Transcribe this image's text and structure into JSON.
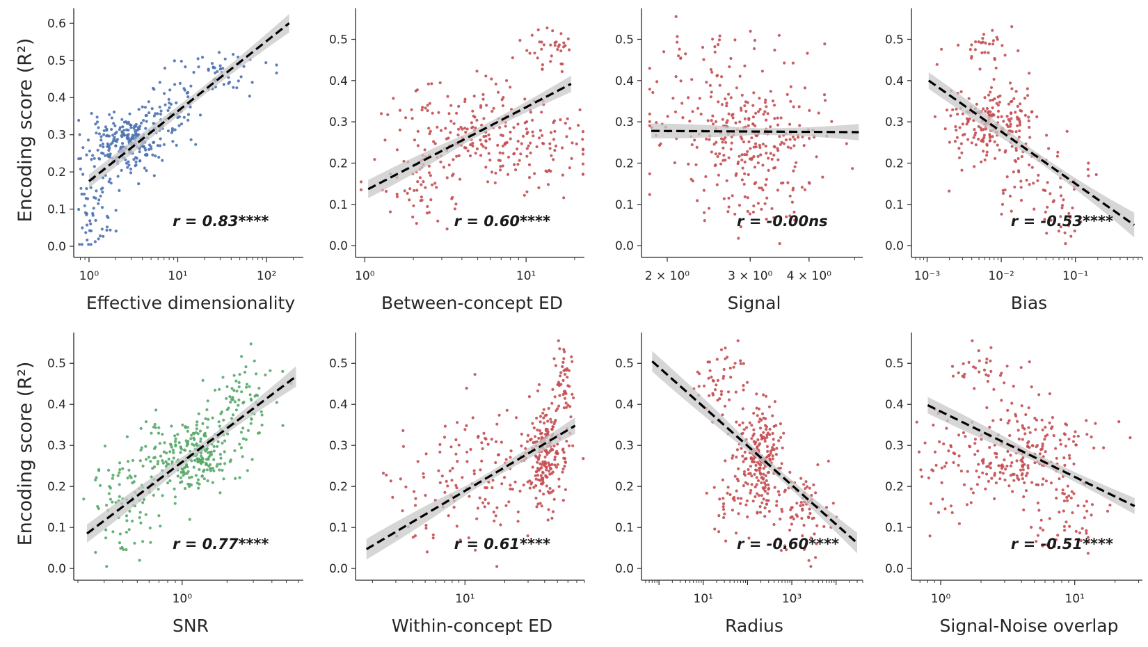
{
  "figure": {
    "background": "#ffffff",
    "fit_line_color": "#000000",
    "ci_color": "#c8c8c8"
  },
  "chart_data": [
    {
      "type": "scatter",
      "xlabel": "Effective dimensionality",
      "ylabel": "Encoding score (R²)",
      "xscale": "log",
      "xlim": [
        0.75,
        260
      ],
      "ylim": [
        -0.015,
        0.64
      ],
      "xticks": [
        {
          "value": 1,
          "label": "10⁰"
        },
        {
          "value": 10,
          "label": "10¹"
        },
        {
          "value": 100,
          "label": "10²"
        }
      ],
      "yticks": [
        0,
        0.1,
        0.2,
        0.3,
        0.4,
        0.5,
        0.6
      ],
      "color": "#4c72b0",
      "annotation": "r = 0.83****",
      "fit": {
        "x": [
          1,
          180
        ],
        "y": [
          0.175,
          0.6
        ],
        "ci": [
          0.018,
          0.012,
          0.025
        ]
      },
      "clusters": [
        {
          "cx": 1.15,
          "cy": 0.1,
          "sx": 0.12,
          "sy": 0.06,
          "n": 60
        },
        {
          "cx": 2.2,
          "cy": 0.27,
          "sx": 0.18,
          "sy": 0.04,
          "n": 170
        },
        {
          "cx": 4.5,
          "cy": 0.3,
          "sx": 0.18,
          "sy": 0.04,
          "n": 80
        },
        {
          "cx": 8,
          "cy": 0.36,
          "sx": 0.15,
          "sy": 0.04,
          "n": 40
        },
        {
          "cx": 30,
          "cy": 0.48,
          "sx": 0.25,
          "sy": 0.03,
          "n": 50
        }
      ],
      "seed": 11
    },
    {
      "type": "scatter",
      "xlabel": "Between-concept ED",
      "ylabel": "",
      "xscale": "log",
      "xlim": [
        0.93,
        23
      ],
      "ylim": [
        -0.015,
        0.575
      ],
      "xticks": [
        {
          "value": 1,
          "label": "10⁰"
        },
        {
          "value": 10,
          "label": "10¹"
        }
      ],
      "yticks": [
        0,
        0.1,
        0.2,
        0.3,
        0.4,
        0.5
      ],
      "color": "#c44e52",
      "annotation": "r = 0.60****",
      "fit": {
        "x": [
          1.05,
          19
        ],
        "y": [
          0.137,
          0.392
        ],
        "ci": [
          0.022,
          0.01,
          0.02
        ]
      },
      "clusters": [
        {
          "cx": 2,
          "cy": 0.13,
          "sx": 0.12,
          "sy": 0.05,
          "n": 45
        },
        {
          "cx": 5,
          "cy": 0.27,
          "sx": 0.28,
          "sy": 0.06,
          "n": 220
        },
        {
          "cx": 14,
          "cy": 0.47,
          "sx": 0.08,
          "sy": 0.035,
          "n": 35
        },
        {
          "cx": 12,
          "cy": 0.2,
          "sx": 0.15,
          "sy": 0.05,
          "n": 40
        }
      ],
      "seed": 23
    },
    {
      "type": "scatter",
      "xlabel": "Signal",
      "ylabel": "",
      "xscale": "log",
      "xlim": [
        1.8,
        5.2
      ],
      "ylim": [
        -0.015,
        0.575
      ],
      "xticks": [
        {
          "value": 2,
          "label": "2 × 10⁰"
        },
        {
          "value": 3,
          "label": "3 × 10⁰"
        },
        {
          "value": 4,
          "label": "4 × 10⁰"
        }
      ],
      "yticks": [
        0,
        0.1,
        0.2,
        0.3,
        0.4,
        0.5
      ],
      "color": "#c44e52",
      "annotation": "r = -0.00ns",
      "fit": {
        "x": [
          1.85,
          5.1
        ],
        "y": [
          0.278,
          0.275
        ],
        "ci": [
          0.018,
          0.008,
          0.02
        ]
      },
      "clusters": [
        {
          "cx": 3.1,
          "cy": 0.27,
          "sx": 0.07,
          "sy": 0.07,
          "n": 200
        },
        {
          "cx": 2.5,
          "cy": 0.3,
          "sx": 0.1,
          "sy": 0.09,
          "n": 80
        },
        {
          "cx": 2.5,
          "cy": 0.48,
          "sx": 0.1,
          "sy": 0.02,
          "n": 20
        },
        {
          "cx": 3.3,
          "cy": 0.1,
          "sx": 0.06,
          "sy": 0.05,
          "n": 40
        }
      ],
      "seed": 37
    },
    {
      "type": "scatter",
      "xlabel": "Bias",
      "ylabel": "",
      "xscale": "log",
      "xlim": [
        0.0007,
        0.8
      ],
      "ylim": [
        -0.015,
        0.575
      ],
      "xticks": [
        {
          "value": 0.001,
          "label": "10⁻³"
        },
        {
          "value": 0.01,
          "label": "10⁻²"
        },
        {
          "value": 0.1,
          "label": "10⁻¹"
        }
      ],
      "yticks": [
        0,
        0.1,
        0.2,
        0.3,
        0.4,
        0.5
      ],
      "color": "#c44e52",
      "annotation": "r = -0.53****",
      "fit": {
        "x": [
          0.00105,
          0.62
        ],
        "y": [
          0.4,
          0.05
        ],
        "ci": [
          0.02,
          0.01,
          0.03
        ]
      },
      "clusters": [
        {
          "cx": 0.008,
          "cy": 0.3,
          "sx": 0.3,
          "sy": 0.05,
          "n": 200
        },
        {
          "cx": 0.005,
          "cy": 0.49,
          "sx": 0.18,
          "sy": 0.025,
          "n": 30
        },
        {
          "cx": 0.03,
          "cy": 0.16,
          "sx": 0.35,
          "sy": 0.05,
          "n": 60
        },
        {
          "cx": 0.07,
          "cy": 0.05,
          "sx": 0.15,
          "sy": 0.03,
          "n": 15
        }
      ],
      "seed": 41
    },
    {
      "type": "scatter",
      "xlabel": "SNR",
      "ylabel": "Encoding score (R²)",
      "xscale": "log",
      "xlim": [
        0.2,
        6.5
      ],
      "ylim": [
        -0.015,
        0.575
      ],
      "xticks": [
        {
          "value": 1,
          "label": "10⁰"
        }
      ],
      "yticks": [
        0,
        0.1,
        0.2,
        0.3,
        0.4,
        0.5
      ],
      "color": "#55a868",
      "annotation": "r = 0.77****",
      "fit": {
        "x": [
          0.23,
          5.8
        ],
        "y": [
          0.085,
          0.468
        ],
        "ci": [
          0.022,
          0.01,
          0.025
        ]
      },
      "clusters": [
        {
          "cx": 0.4,
          "cy": 0.15,
          "sx": 0.12,
          "sy": 0.06,
          "n": 80
        },
        {
          "cx": 1.2,
          "cy": 0.28,
          "sx": 0.12,
          "sy": 0.04,
          "n": 200
        },
        {
          "cx": 2.5,
          "cy": 0.4,
          "sx": 0.12,
          "sy": 0.06,
          "n": 80
        },
        {
          "cx": 0.8,
          "cy": 0.25,
          "sx": 0.2,
          "sy": 0.06,
          "n": 60
        }
      ],
      "seed": 53
    },
    {
      "type": "scatter",
      "xlabel": "Within-concept ED",
      "ylabel": "",
      "xscale": "log",
      "xlim": [
        1.6,
        80
      ],
      "ylim": [
        -0.015,
        0.575
      ],
      "xticks": [
        {
          "value": 10,
          "label": "10¹"
        }
      ],
      "yticks": [
        0,
        0.1,
        0.2,
        0.3,
        0.4,
        0.5
      ],
      "color": "#c44e52",
      "annotation": "r = 0.61****",
      "fit": {
        "x": [
          1.8,
          68
        ],
        "y": [
          0.047,
          0.348
        ],
        "ci": [
          0.025,
          0.01,
          0.02
        ]
      },
      "clusters": [
        {
          "cx": 40,
          "cy": 0.28,
          "sx": 0.08,
          "sy": 0.06,
          "n": 200
        },
        {
          "cx": 55,
          "cy": 0.45,
          "sx": 0.04,
          "sy": 0.05,
          "n": 50
        },
        {
          "cx": 15,
          "cy": 0.25,
          "sx": 0.25,
          "sy": 0.07,
          "n": 100
        },
        {
          "cx": 6,
          "cy": 0.15,
          "sx": 0.2,
          "sy": 0.07,
          "n": 40
        }
      ],
      "seed": 67
    },
    {
      "type": "scatter",
      "xlabel": "Radius",
      "ylabel": "",
      "xscale": "log",
      "xlim": [
        0.5,
        40000
      ],
      "ylim": [
        -0.015,
        0.575
      ],
      "xticks": [
        {
          "value": 10,
          "label": "10¹"
        },
        {
          "value": 1000,
          "label": "10³"
        }
      ],
      "yticks": [
        0,
        0.1,
        0.2,
        0.3,
        0.4,
        0.5
      ],
      "color": "#c44e52",
      "annotation": "r = -0.60****",
      "fit": {
        "x": [
          0.7,
          30000
        ],
        "y": [
          0.505,
          0.062
        ],
        "ci": [
          0.025,
          0.01,
          0.025
        ]
      },
      "clusters": [
        {
          "cx": 200,
          "cy": 0.27,
          "sx": 0.25,
          "sy": 0.06,
          "n": 220
        },
        {
          "cx": 20,
          "cy": 0.45,
          "sx": 0.3,
          "sy": 0.06,
          "n": 50
        },
        {
          "cx": 2000,
          "cy": 0.13,
          "sx": 0.35,
          "sy": 0.06,
          "n": 80
        },
        {
          "cx": 40,
          "cy": 0.18,
          "sx": 0.3,
          "sy": 0.05,
          "n": 40
        }
      ],
      "seed": 79
    },
    {
      "type": "scatter",
      "xlabel": "Signal-Noise overlap",
      "ylabel": "",
      "xscale": "log",
      "xlim": [
        0.65,
        32
      ],
      "ylim": [
        -0.015,
        0.575
      ],
      "xticks": [
        {
          "value": 1,
          "label": "10⁰"
        },
        {
          "value": 10,
          "label": "10¹"
        }
      ],
      "yticks": [
        0,
        0.1,
        0.2,
        0.3,
        0.4,
        0.5
      ],
      "color": "#c44e52",
      "annotation": "r = -0.51****",
      "fit": {
        "x": [
          0.8,
          28
        ],
        "y": [
          0.398,
          0.152
        ],
        "ci": [
          0.02,
          0.01,
          0.02
        ]
      },
      "clusters": [
        {
          "cx": 4,
          "cy": 0.28,
          "sx": 0.25,
          "sy": 0.06,
          "n": 220
        },
        {
          "cx": 2,
          "cy": 0.48,
          "sx": 0.15,
          "sy": 0.025,
          "n": 30
        },
        {
          "cx": 9,
          "cy": 0.12,
          "sx": 0.15,
          "sy": 0.05,
          "n": 50
        },
        {
          "cx": 1.2,
          "cy": 0.25,
          "sx": 0.15,
          "sy": 0.08,
          "n": 40
        }
      ],
      "seed": 97
    }
  ]
}
